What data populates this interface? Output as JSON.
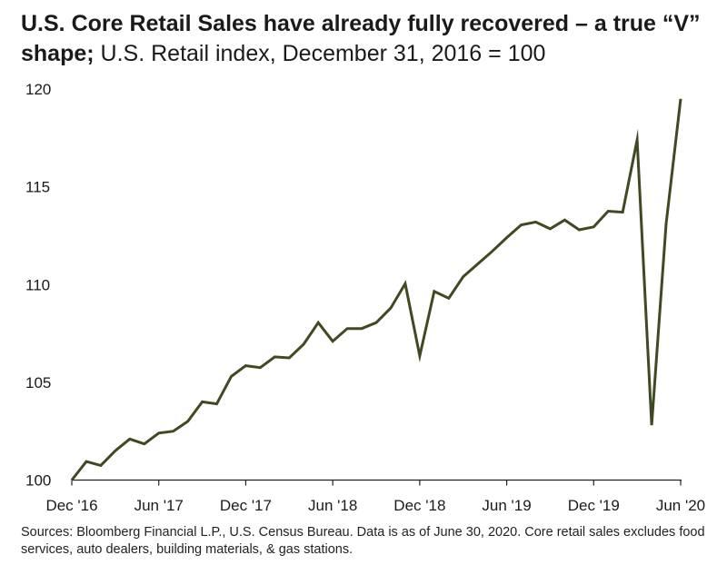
{
  "title": {
    "bold": "U.S. Core Retail Sales have already fully recovered – a true “V” shape;",
    "subtitle": " U.S. Retail index, December 31, 2016 = 100"
  },
  "source": "Sources: Bloomberg Financial L.P., U.S. Census Bureau. Data is as of June 30, 2020. Core retail sales excludes food services, auto dealers, building materials, & gas stations.",
  "colors": {
    "line": "#3f4a23",
    "axis": "#222222"
  },
  "chart_data": {
    "type": "line",
    "title": "U.S. Core Retail Sales have already fully recovered – a true “V” shape; U.S. Retail index, December 31, 2016 = 100",
    "xlabel": "",
    "ylabel": "",
    "ylim": [
      100,
      120
    ],
    "yticks": [
      100,
      105,
      110,
      115,
      120
    ],
    "grid": false,
    "xtick_labels": [
      "Dec '16",
      "Jun '17",
      "Dec '17",
      "Jun '18",
      "Dec '18",
      "Jun '19",
      "Dec '19",
      "Jun '20"
    ],
    "xtick_positions": [
      0,
      6,
      12,
      18,
      24,
      30,
      36,
      42
    ],
    "x": [
      "Dec 2016",
      "Jan 2017",
      "Feb 2017",
      "Mar 2017",
      "Apr 2017",
      "May 2017",
      "Jun 2017",
      "Jul 2017",
      "Aug 2017",
      "Sep 2017",
      "Oct 2017",
      "Nov 2017",
      "Dec 2017",
      "Jan 2018",
      "Feb 2018",
      "Mar 2018",
      "Apr 2018",
      "May 2018",
      "Jun 2018",
      "Jul 2018",
      "Aug 2018",
      "Sep 2018",
      "Oct 2018",
      "Nov 2018",
      "Dec 2018",
      "Jan 2019",
      "Feb 2019",
      "Mar 2019",
      "Apr 2019",
      "May 2019",
      "Jun 2019",
      "Jul 2019",
      "Aug 2019",
      "Sep 2019",
      "Oct 2019",
      "Nov 2019",
      "Dec 2019",
      "Jan 2020",
      "Feb 2020",
      "Mar 2020",
      "Apr 2020",
      "May 2020",
      "Jun 2020"
    ],
    "series": [
      {
        "name": "U.S. Core Retail Sales Index",
        "values": [
          100.0,
          100.95,
          100.75,
          101.5,
          102.1,
          101.85,
          102.4,
          102.5,
          103.0,
          104.0,
          103.9,
          105.3,
          105.85,
          105.75,
          106.3,
          106.25,
          106.95,
          108.05,
          107.1,
          107.75,
          107.75,
          108.05,
          108.8,
          110.05,
          106.35,
          109.65,
          109.3,
          110.4,
          111.05,
          111.7,
          112.4,
          113.05,
          113.2,
          112.85,
          113.3,
          112.8,
          112.95,
          113.75,
          113.7,
          117.4,
          102.8,
          113.1,
          119.5
        ]
      }
    ]
  }
}
